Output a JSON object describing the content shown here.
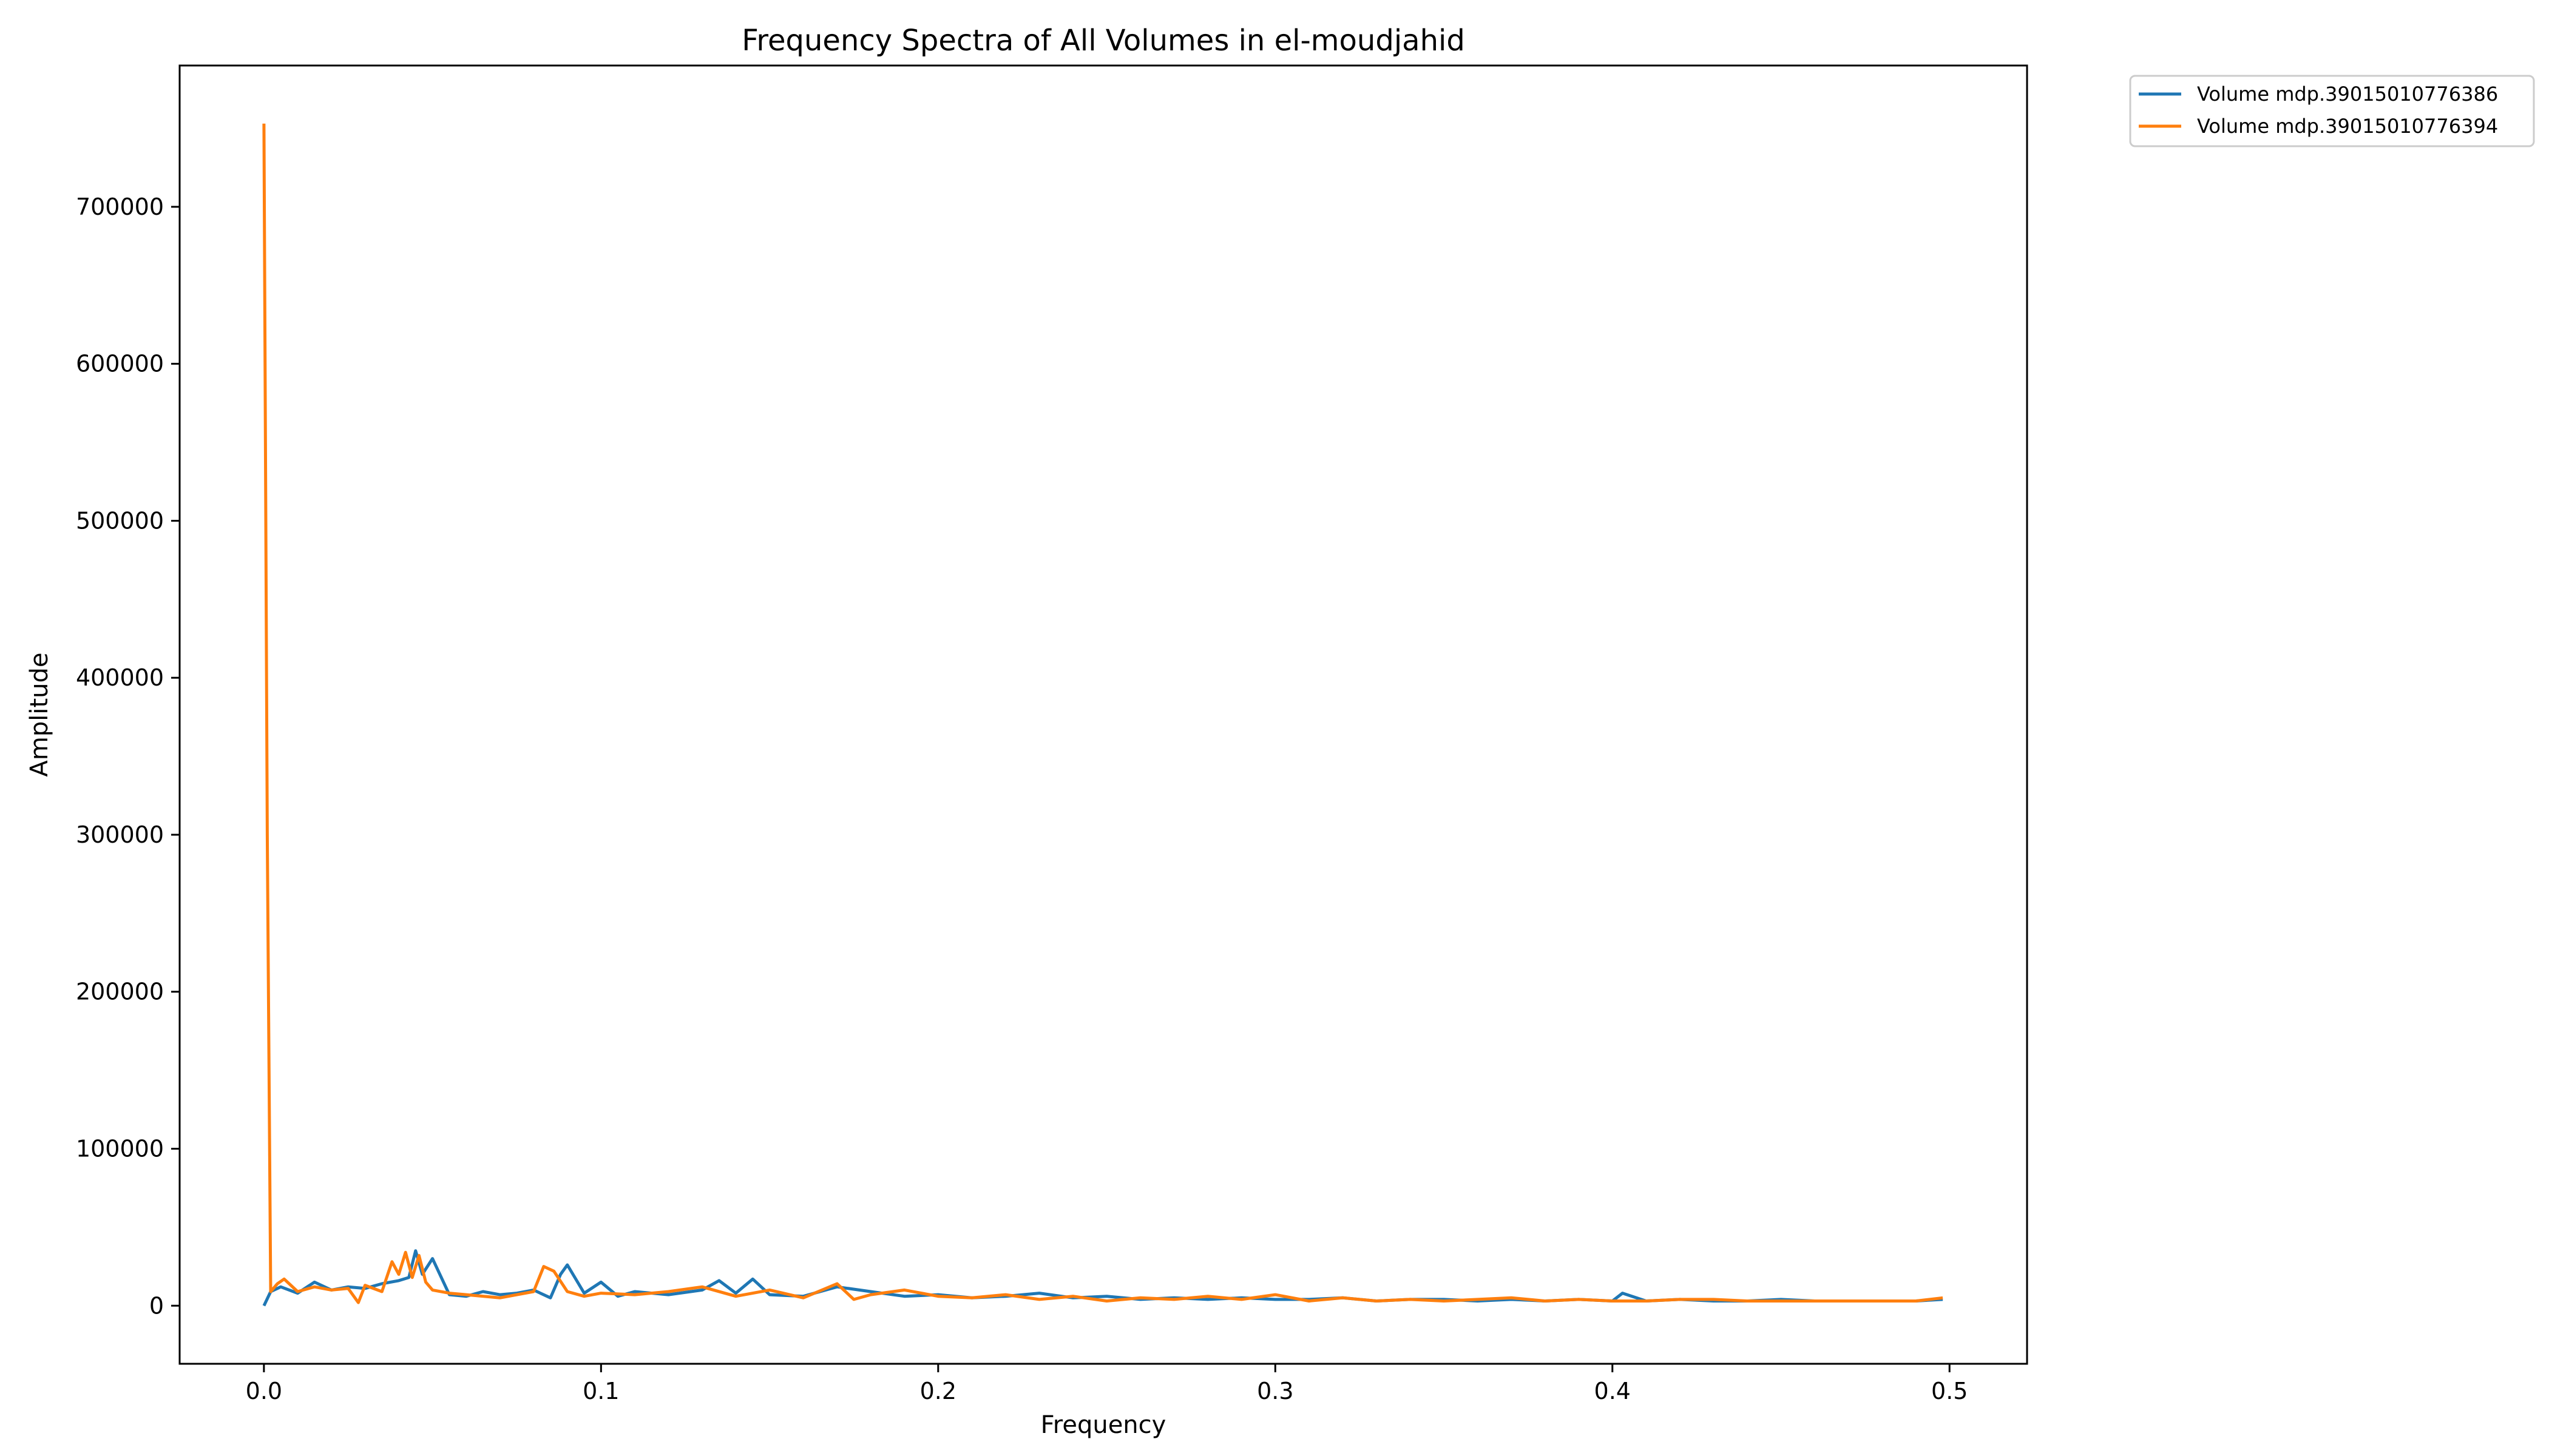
{
  "chart_data": {
    "type": "line",
    "title": "Frequency Spectra of All Volumes in el-moudjahid",
    "xlabel": "Frequency",
    "ylabel": "Amplitude",
    "xlim": [
      -0.025,
      0.523
    ],
    "ylim": [
      -37000,
      790000
    ],
    "xticks": [
      0.0,
      0.1,
      0.2,
      0.3,
      0.4,
      0.5
    ],
    "xtick_labels": [
      "0.0",
      "0.1",
      "0.2",
      "0.3",
      "0.4",
      "0.5"
    ],
    "yticks": [
      0,
      100000,
      200000,
      300000,
      400000,
      500000,
      600000,
      700000
    ],
    "ytick_labels": [
      "0",
      "100000",
      "200000",
      "300000",
      "400000",
      "500000",
      "600000",
      "700000"
    ],
    "grid": false,
    "legend_position": "outside-top-right",
    "series": [
      {
        "name": "Volume mdp.39015010776386",
        "color": "#1f77b4",
        "x": [
          0.0,
          0.002,
          0.005,
          0.01,
          0.015,
          0.02,
          0.025,
          0.03,
          0.035,
          0.04,
          0.043,
          0.045,
          0.047,
          0.05,
          0.055,
          0.06,
          0.065,
          0.07,
          0.075,
          0.08,
          0.085,
          0.088,
          0.09,
          0.095,
          0.1,
          0.105,
          0.11,
          0.12,
          0.13,
          0.135,
          0.14,
          0.145,
          0.15,
          0.16,
          0.17,
          0.18,
          0.19,
          0.2,
          0.21,
          0.22,
          0.23,
          0.24,
          0.25,
          0.26,
          0.27,
          0.28,
          0.29,
          0.3,
          0.31,
          0.32,
          0.33,
          0.34,
          0.35,
          0.36,
          0.37,
          0.38,
          0.39,
          0.4,
          0.403,
          0.41,
          0.42,
          0.43,
          0.44,
          0.45,
          0.46,
          0.47,
          0.48,
          0.49,
          0.498
        ],
        "y": [
          0,
          9000,
          12000,
          8000,
          15000,
          10000,
          12000,
          11000,
          14000,
          16000,
          18000,
          35000,
          20000,
          30000,
          7000,
          6000,
          9000,
          7000,
          8000,
          10000,
          5000,
          20000,
          26000,
          8000,
          15000,
          6000,
          9000,
          7000,
          10000,
          16000,
          8000,
          17000,
          7000,
          6000,
          12000,
          9000,
          6000,
          7000,
          5000,
          6000,
          8000,
          5000,
          6000,
          4000,
          5000,
          4000,
          5000,
          4000,
          4000,
          5000,
          3000,
          4000,
          4000,
          3000,
          4000,
          3000,
          4000,
          3000,
          8000,
          3000,
          4000,
          3000,
          3000,
          4000,
          3000,
          3000,
          3000,
          3000,
          4000
        ]
      },
      {
        "name": "Volume mdp.39015010776394",
        "color": "#ff7f0e",
        "x": [
          0.0,
          0.001,
          0.002,
          0.004,
          0.006,
          0.01,
          0.015,
          0.02,
          0.025,
          0.028,
          0.03,
          0.035,
          0.038,
          0.04,
          0.042,
          0.044,
          0.046,
          0.048,
          0.05,
          0.055,
          0.06,
          0.07,
          0.08,
          0.083,
          0.086,
          0.09,
          0.095,
          0.1,
          0.11,
          0.12,
          0.13,
          0.14,
          0.15,
          0.16,
          0.17,
          0.175,
          0.18,
          0.19,
          0.2,
          0.21,
          0.22,
          0.23,
          0.24,
          0.25,
          0.26,
          0.27,
          0.28,
          0.29,
          0.3,
          0.31,
          0.32,
          0.33,
          0.34,
          0.35,
          0.36,
          0.37,
          0.38,
          0.39,
          0.4,
          0.41,
          0.42,
          0.43,
          0.44,
          0.45,
          0.46,
          0.47,
          0.48,
          0.49,
          0.498
        ],
        "y": [
          753000,
          300000,
          9000,
          14000,
          17000,
          9000,
          12000,
          10000,
          11000,
          2000,
          13000,
          9000,
          28000,
          20000,
          34000,
          18000,
          32000,
          15000,
          10000,
          8000,
          7000,
          5000,
          9000,
          25000,
          22000,
          9000,
          6000,
          8000,
          7000,
          9000,
          12000,
          6000,
          10000,
          5000,
          14000,
          4000,
          7000,
          10000,
          6000,
          5000,
          7000,
          4000,
          6000,
          3000,
          5000,
          4000,
          6000,
          4000,
          7000,
          3000,
          5000,
          3000,
          4000,
          3000,
          4000,
          5000,
          3000,
          4000,
          3000,
          3000,
          4000,
          4000,
          3000,
          3000,
          3000,
          3000,
          3000,
          3000,
          5000
        ]
      }
    ]
  }
}
